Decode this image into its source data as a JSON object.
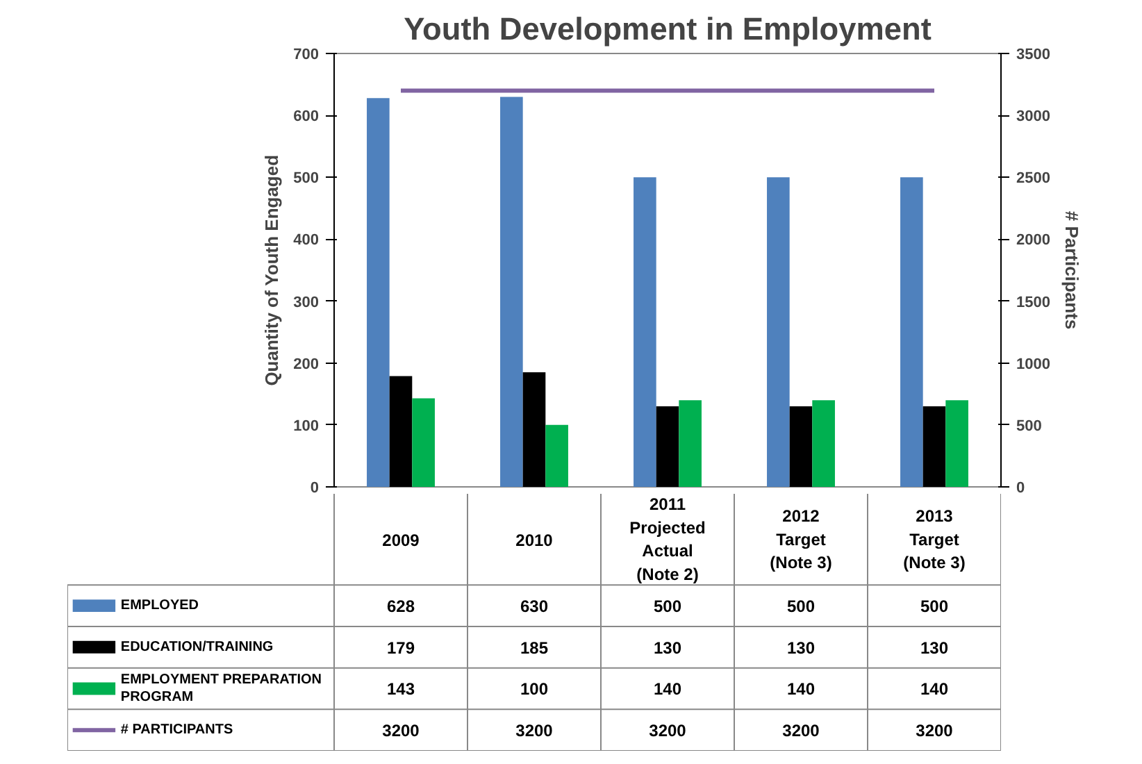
{
  "chart_data": {
    "type": "bar",
    "title": "Youth Development in Employment",
    "ylabel": "Quantity of Youth Engaged",
    "y2label": "# Participants",
    "categories": [
      "2009",
      "2010",
      "2011 Projected Actual (Note 2)",
      "2012 Target (Note 3)",
      "2013 Target (Note 3)"
    ],
    "series": [
      {
        "name": "EMPLOYED",
        "color": "#4f81bd",
        "values": [
          628,
          630,
          500,
          500,
          500
        ]
      },
      {
        "name": "EDUCATION/TRAINING",
        "color": "#000000",
        "values": [
          179,
          185,
          130,
          130,
          130
        ]
      },
      {
        "name": "EMPLOYMENT PREPARATION PROGRAM",
        "color": "#00b050",
        "values": [
          143,
          100,
          140,
          140,
          140
        ]
      },
      {
        "name": "# PARTICIPANTS",
        "color": "#8064a2",
        "type": "line",
        "axis": "y2",
        "values": [
          3200,
          3200,
          3200,
          3200,
          3200
        ]
      }
    ],
    "ylim": [
      0,
      700
    ],
    "yticks": [
      0,
      100,
      200,
      300,
      400,
      500,
      600,
      700
    ],
    "y2lim": [
      0,
      3500
    ],
    "y2ticks": [
      0,
      500,
      1000,
      1500,
      2000,
      2500,
      3000,
      3500
    ],
    "data_labels": true,
    "legend": "bottom"
  }
}
